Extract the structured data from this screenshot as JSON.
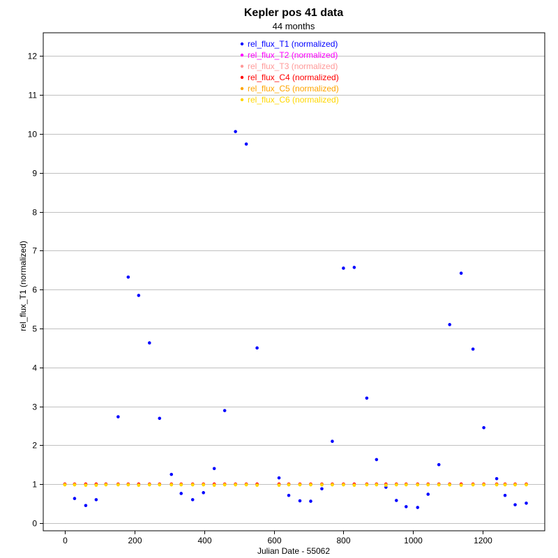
{
  "chart_data": {
    "type": "scatter",
    "title": "Kepler pos 41 data",
    "subtitle": "44 months",
    "xlabel": "Julian Date - 55062",
    "ylabel": "rel_flux_T1 (normalized)",
    "xlim": [
      -62,
      1378
    ],
    "ylim": [
      -0.2,
      12.6
    ],
    "xticks": [
      0,
      200,
      400,
      600,
      800,
      1000,
      1200
    ],
    "yticks": [
      0,
      1,
      2,
      3,
      4,
      5,
      6,
      7,
      8,
      9,
      10,
      11,
      12
    ],
    "grid": "horizontal",
    "legend_position": "top-center",
    "series": [
      {
        "name": "rel_flux_T1 (normalized)",
        "color": "#0000ff",
        "x": [
          0,
          28,
          60,
          90,
          118,
          153,
          182,
          212,
          243,
          272,
          306,
          334,
          367,
          398,
          429,
          459,
          490,
          521,
          552,
          615,
          643,
          675,
          706,
          738,
          768,
          800,
          831,
          867,
          895,
          922,
          952,
          980,
          1013,
          1043,
          1074,
          1105,
          1138,
          1172,
          1203,
          1240,
          1264,
          1293,
          1325
        ],
        "y": [
          1.0,
          0.63,
          0.45,
          0.6,
          1.0,
          2.73,
          6.32,
          5.85,
          4.63,
          2.69,
          1.25,
          0.76,
          0.6,
          0.78,
          1.4,
          2.89,
          10.06,
          9.74,
          4.5,
          1.16,
          0.71,
          0.57,
          0.56,
          0.88,
          2.1,
          6.55,
          6.57,
          3.21,
          1.63,
          0.92,
          0.58,
          0.42,
          0.4,
          0.74,
          1.5,
          5.1,
          6.42,
          4.47,
          2.45,
          1.14,
          0.71,
          0.47,
          0.51
        ]
      },
      {
        "name": "rel_flux_T2 (normalized)",
        "color": "#ff00ff",
        "x": [
          0,
          28,
          60,
          90,
          118,
          153,
          182,
          212,
          243,
          272,
          306,
          334,
          367,
          398,
          429,
          459,
          490,
          521,
          552,
          615,
          643,
          675,
          706,
          738,
          768,
          800,
          831,
          867,
          895,
          922,
          952,
          980,
          1013,
          1043,
          1074,
          1105,
          1138,
          1172,
          1203,
          1240,
          1264,
          1293,
          1325
        ],
        "y": [
          1.0,
          1.0,
          1.0,
          1.0,
          1.0,
          1.0,
          1.0,
          1.0,
          1.0,
          1.0,
          1.0,
          1.0,
          1.0,
          1.0,
          1.0,
          1.0,
          1.0,
          1.0,
          1.0,
          1.0,
          1.0,
          1.0,
          1.0,
          1.0,
          1.0,
          1.0,
          1.0,
          1.0,
          1.0,
          1.0,
          1.0,
          1.0,
          1.0,
          1.0,
          1.0,
          1.0,
          1.0,
          1.0,
          1.0,
          1.0,
          1.0,
          1.0,
          1.0
        ]
      },
      {
        "name": "rel_flux_T3 (normalized)",
        "color": "#ff9999",
        "x": [
          0,
          28,
          60,
          90,
          118,
          153,
          182,
          212,
          243,
          272,
          306,
          334,
          367,
          398,
          429,
          459,
          490,
          521,
          552,
          615,
          643,
          675,
          706,
          738,
          768,
          800,
          831,
          867,
          895,
          922,
          952,
          980,
          1013,
          1043,
          1074,
          1105,
          1138,
          1172,
          1203,
          1240,
          1264,
          1293,
          1325
        ],
        "y": [
          1.0,
          1.0,
          1.0,
          1.0,
          1.0,
          1.0,
          1.0,
          1.0,
          1.0,
          1.0,
          1.0,
          1.0,
          1.0,
          1.0,
          1.0,
          1.0,
          1.0,
          1.0,
          1.0,
          1.0,
          1.0,
          1.0,
          1.0,
          1.0,
          1.0,
          1.0,
          1.0,
          1.0,
          1.0,
          1.0,
          1.0,
          1.0,
          1.0,
          1.0,
          1.0,
          1.0,
          1.0,
          1.0,
          1.0,
          1.0,
          1.0,
          1.0,
          1.0
        ]
      },
      {
        "name": "rel_flux_C4 (normalized)",
        "color": "#ff0000",
        "x": [
          0,
          28,
          60,
          90,
          118,
          153,
          182,
          212,
          243,
          272,
          306,
          334,
          367,
          398,
          429,
          459,
          490,
          521,
          552,
          615,
          643,
          675,
          706,
          738,
          768,
          800,
          831,
          867,
          895,
          922,
          952,
          980,
          1013,
          1043,
          1074,
          1105,
          1138,
          1172,
          1203,
          1240,
          1264,
          1293,
          1325
        ],
        "y": [
          1.0,
          1.0,
          1.0,
          1.0,
          1.0,
          1.0,
          1.0,
          1.0,
          1.0,
          1.0,
          1.0,
          1.0,
          1.0,
          1.0,
          1.0,
          1.0,
          1.0,
          1.0,
          1.0,
          1.0,
          1.0,
          1.0,
          1.0,
          1.0,
          1.0,
          1.0,
          1.0,
          1.0,
          1.0,
          1.0,
          1.0,
          1.0,
          1.0,
          1.0,
          1.0,
          1.0,
          1.0,
          1.0,
          1.0,
          1.0,
          1.0,
          1.0,
          1.0
        ]
      },
      {
        "name": "rel_flux_C5 (normalized)",
        "color": "#ffa500",
        "x": [
          0,
          28,
          60,
          90,
          118,
          153,
          182,
          212,
          243,
          272,
          306,
          334,
          367,
          398,
          429,
          459,
          490,
          521,
          552,
          615,
          643,
          675,
          706,
          738,
          768,
          800,
          831,
          867,
          895,
          922,
          952,
          980,
          1013,
          1043,
          1074,
          1105,
          1138,
          1172,
          1203,
          1240,
          1264,
          1293,
          1325
        ],
        "y": [
          0.99,
          0.99,
          0.98,
          0.98,
          0.99,
          0.99,
          0.99,
          0.98,
          0.99,
          0.99,
          0.99,
          0.99,
          0.99,
          0.99,
          0.98,
          0.99,
          0.99,
          0.99,
          0.98,
          0.98,
          0.99,
          0.99,
          0.99,
          0.99,
          0.99,
          0.99,
          0.98,
          0.99,
          0.99,
          0.98,
          0.99,
          0.99,
          0.99,
          0.99,
          0.99,
          0.99,
          0.98,
          0.99,
          0.99,
          0.99,
          0.99,
          0.99,
          0.99
        ]
      },
      {
        "name": "rel_flux_C6 (normalized)",
        "color": "#ffd700",
        "x": [
          0,
          28,
          60,
          90,
          118,
          153,
          182,
          212,
          243,
          272,
          306,
          334,
          367,
          398,
          429,
          459,
          490,
          521,
          552,
          615,
          643,
          675,
          706,
          738,
          768,
          800,
          831,
          867,
          895,
          922,
          952,
          980,
          1013,
          1043,
          1074,
          1105,
          1138,
          1172,
          1203,
          1240,
          1264,
          1293,
          1325
        ],
        "y": [
          0.98,
          0.98,
          0.97,
          0.97,
          0.98,
          0.98,
          0.98,
          0.97,
          0.98,
          0.98,
          0.98,
          0.98,
          0.98,
          0.98,
          0.97,
          0.98,
          0.98,
          0.98,
          0.97,
          0.97,
          0.98,
          0.98,
          0.98,
          0.98,
          0.98,
          0.98,
          0.97,
          0.98,
          0.98,
          0.97,
          0.98,
          0.98,
          0.98,
          0.98,
          0.98,
          0.98,
          0.97,
          0.98,
          0.98,
          0.98,
          0.98,
          0.98,
          0.98
        ]
      }
    ]
  }
}
